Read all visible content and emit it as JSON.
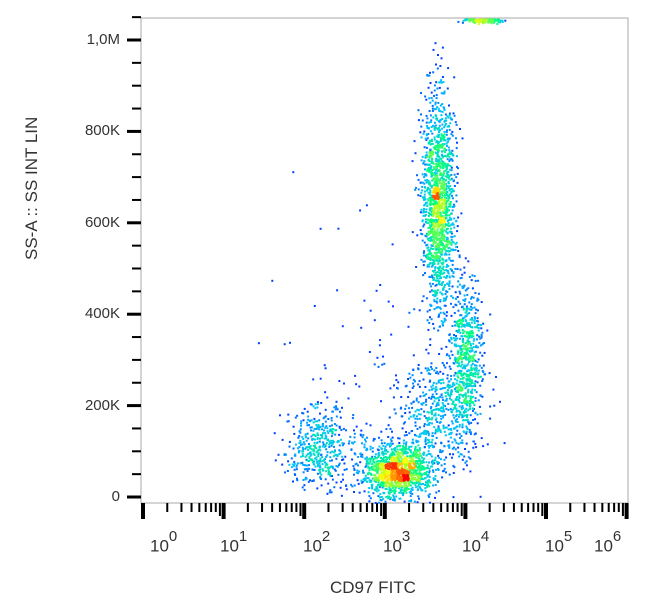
{
  "chart_data": {
    "type": "scatter",
    "title": "",
    "xlabel": "CD97 FITC",
    "ylabel": "SS-A :: SS INT LIN",
    "x_scale": "log",
    "xlim": [
      1,
      1000000
    ],
    "ylim": [
      0,
      1050000
    ],
    "x_ticks": [
      {
        "base": "10",
        "exp": "0"
      },
      {
        "base": "10",
        "exp": "1"
      },
      {
        "base": "10",
        "exp": "2"
      },
      {
        "base": "10",
        "exp": "3"
      },
      {
        "base": "10",
        "exp": "4"
      },
      {
        "base": "10",
        "exp": "5"
      },
      {
        "base": "10",
        "exp": "6"
      }
    ],
    "y_ticks": [
      {
        "value": 0,
        "label": "0"
      },
      {
        "value": 200000,
        "label": "200K"
      },
      {
        "value": 400000,
        "label": "400K"
      },
      {
        "value": 600000,
        "label": "600K"
      },
      {
        "value": 800000,
        "label": "800K"
      },
      {
        "value": 1000000,
        "label": "1,0M"
      }
    ],
    "grid": false,
    "colormap": [
      "#0000ff",
      "#00c0ff",
      "#00ff80",
      "#ffff00",
      "#ff0000"
    ],
    "populations": [
      {
        "log10_x_center": 3.15,
        "y_center": 60000,
        "log10_x_sd": 0.22,
        "y_sd": 30000,
        "count": 1300
      },
      {
        "log10_x_center": 2.2,
        "y_center": 110000,
        "log10_x_sd": 0.22,
        "y_sd": 45000,
        "count": 450
      },
      {
        "log10_x_center": 3.65,
        "y_center": 640000,
        "log10_x_sd": 0.1,
        "y_sd": 120000,
        "count": 1500
      },
      {
        "log10_x_center": 4.0,
        "y_center": 310000,
        "log10_x_sd": 0.1,
        "y_sd": 80000,
        "count": 600
      },
      {
        "log10_x_center": 3.7,
        "y_center": 190000,
        "log10_x_sd": 0.25,
        "y_sd": 60000,
        "count": 500
      },
      {
        "log10_x_center": 4.2,
        "y_center": 1045000,
        "log10_x_sd": 0.12,
        "y_sd": 3000,
        "count": 120
      },
      {
        "log10_x_center": 2.8,
        "y_center": 300000,
        "log10_x_sd": 0.5,
        "y_sd": 150000,
        "count": 80
      }
    ]
  }
}
